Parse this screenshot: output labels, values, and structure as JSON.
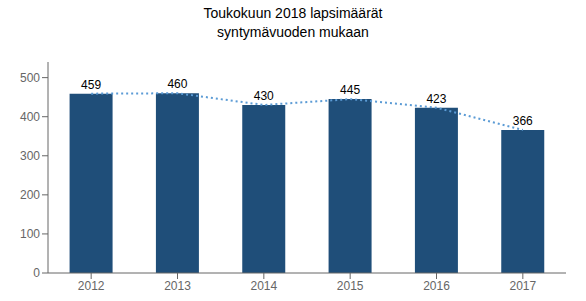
{
  "chart_data": {
    "type": "bar",
    "title": "Toukokuun 2018 lapsimäärät\nsyntymävuoden mukaan",
    "categories": [
      "2012",
      "2013",
      "2014",
      "2015",
      "2016",
      "2017"
    ],
    "series": [
      {
        "type": "bar",
        "color": "#1F4E79",
        "values": [
          459,
          460,
          430,
          445,
          423,
          366
        ]
      },
      {
        "type": "line",
        "color": "#5B9BD5",
        "line_style": "dotted",
        "values": [
          459,
          460,
          430,
          445,
          423,
          366
        ]
      }
    ],
    "ylim": [
      0,
      540
    ],
    "yticks": [
      0,
      100,
      200,
      300,
      400,
      500
    ],
    "grid": false,
    "data_labels": true
  }
}
